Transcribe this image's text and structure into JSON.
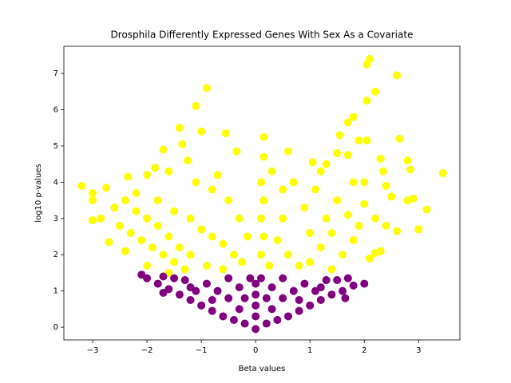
{
  "chart_data": {
    "type": "scatter",
    "title": "Drosphila Differently Expressed Genes With Sex As a Covariate",
    "x_label": "Beta values",
    "y_label": "log10 p-values",
    "xlim": [
      -3.53,
      3.76
    ],
    "ylim": [
      -0.35,
      7.75
    ],
    "xticks": [
      {
        "value": -3,
        "label": "−3"
      },
      {
        "value": -2,
        "label": "−2"
      },
      {
        "value": -1,
        "label": "−1"
      },
      0,
      1,
      2,
      3
    ],
    "yticks": [
      0,
      1,
      2,
      3,
      4,
      5,
      6,
      7
    ],
    "series": [
      {
        "color": "#ffff00",
        "x": [
          -3.2,
          -3.0,
          -3.0,
          -3.0,
          -2.75,
          -2.7,
          -2.35,
          -2.0,
          -1.85,
          -1.7,
          -1.4,
          -1.35,
          -1.1,
          -0.9,
          -1.0,
          -0.55,
          -0.35,
          0.15,
          0.15,
          0.6,
          1.05,
          1.3,
          1.55,
          1.7,
          1.8,
          1.9,
          2.05,
          2.05,
          2.1,
          2.05,
          2.2,
          2.6,
          2.65,
          2.3,
          2.35,
          2.8,
          2.85,
          3.45,
          3.15,
          3.0,
          2.6,
          2.8,
          2.9,
          2.1,
          2.2,
          1.5,
          1.7,
          -2.85,
          -2.4,
          -2.2,
          -2.0,
          -1.8,
          -1.6,
          -1.4,
          -1.2,
          -2.5,
          -2.3,
          -2.1,
          -1.9,
          -1.7,
          -1.5,
          -1.3,
          -2.6,
          -2.2,
          -1.8,
          -1.5,
          -1.2,
          -1.0,
          -0.8,
          -0.6,
          -0.4,
          -0.25,
          -1.1,
          -0.8,
          -0.5,
          -0.3,
          -0.15,
          -1.6,
          -1.25,
          -0.7,
          -0.9,
          -0.6,
          -2.4,
          -2.0,
          -1.6,
          0.1,
          0.15,
          0.1,
          0.15,
          0.1,
          0.25,
          0.3,
          0.5,
          0.5,
          0.4,
          0.6,
          0.8,
          0.9,
          1.0,
          1.1,
          1.2,
          1.3,
          1.4,
          1.5,
          1.6,
          1.7,
          1.8,
          1.9,
          2.0,
          2.2,
          2.4,
          2.5,
          1.0,
          1.4,
          2.3,
          0.7,
          1.2,
          1.8,
          2.0,
          2.4
        ],
        "values": [
          3.9,
          3.7,
          3.5,
          2.95,
          3.85,
          2.35,
          4.15,
          4.2,
          4.4,
          4.9,
          5.5,
          5.05,
          6.1,
          6.6,
          5.4,
          5.35,
          4.85,
          5.25,
          4.7,
          4.85,
          4.55,
          4.5,
          5.3,
          5.65,
          5.8,
          5.15,
          5.15,
          6.25,
          7.4,
          7.25,
          6.5,
          6.95,
          5.2,
          4.65,
          4.3,
          4.6,
          4.35,
          4.25,
          3.25,
          2.7,
          2.65,
          3.5,
          3.55,
          1.9,
          2.05,
          4.8,
          4.75,
          3.0,
          3.5,
          3.2,
          3.0,
          2.8,
          2.5,
          2.2,
          2.0,
          2.8,
          2.6,
          2.4,
          2.2,
          2.0,
          1.8,
          1.6,
          3.3,
          3.7,
          3.5,
          3.2,
          3.0,
          2.7,
          2.5,
          2.3,
          2.0,
          1.8,
          4.0,
          3.8,
          3.5,
          3.0,
          2.5,
          4.3,
          4.6,
          4.2,
          1.7,
          1.6,
          2.1,
          1.7,
          1.5,
          4.0,
          3.5,
          3.0,
          2.5,
          2.0,
          1.7,
          4.3,
          3.8,
          3.0,
          2.4,
          2.0,
          1.7,
          3.3,
          2.6,
          3.8,
          2.2,
          3.0,
          2.6,
          3.5,
          2.0,
          3.1,
          2.4,
          2.8,
          3.4,
          3.0,
          2.8,
          3.6,
          1.8,
          1.6,
          2.1,
          4.0,
          4.3,
          4.0,
          4.0,
          3.9
        ]
      },
      {
        "color": "#800080",
        "x": [
          0,
          -0.2,
          0.2,
          -0.4,
          0.4,
          -0.6,
          0.6,
          -0.8,
          0.8,
          -1.0,
          1.0,
          -1.2,
          1.2,
          -1.4,
          1.4,
          -1.6,
          1.6,
          -1.8,
          1.8,
          -2.0,
          2.0,
          -2.1,
          1.65,
          -1.7,
          0,
          0,
          0,
          0,
          -0.3,
          0.3,
          -0.5,
          0.5,
          -0.3,
          0.3,
          -0.7,
          0.7,
          -0.9,
          0.9,
          -1.1,
          1.1,
          -1.3,
          1.3,
          -0.5,
          0.5,
          -1.5,
          1.5,
          -0.2,
          0.2,
          -0.8,
          0.8,
          -1.2,
          1.2,
          -1.7,
          1.7,
          -0.1,
          0.1
        ],
        "values": [
          -0.05,
          0.1,
          0.1,
          0.2,
          0.2,
          0.3,
          0.3,
          0.45,
          0.45,
          0.6,
          0.6,
          0.75,
          0.75,
          0.9,
          0.9,
          1.05,
          1.0,
          1.2,
          1.15,
          1.35,
          1.2,
          1.45,
          0.8,
          0.95,
          0.3,
          0.6,
          0.9,
          1.2,
          0.5,
          0.5,
          0.8,
          0.8,
          1.1,
          1.1,
          1.0,
          1.0,
          1.2,
          1.2,
          1.0,
          1.0,
          1.3,
          1.3,
          1.35,
          1.35,
          1.35,
          1.3,
          0.8,
          0.8,
          0.75,
          0.75,
          1.1,
          1.1,
          1.4,
          1.35,
          1.35,
          1.35
        ]
      }
    ]
  }
}
